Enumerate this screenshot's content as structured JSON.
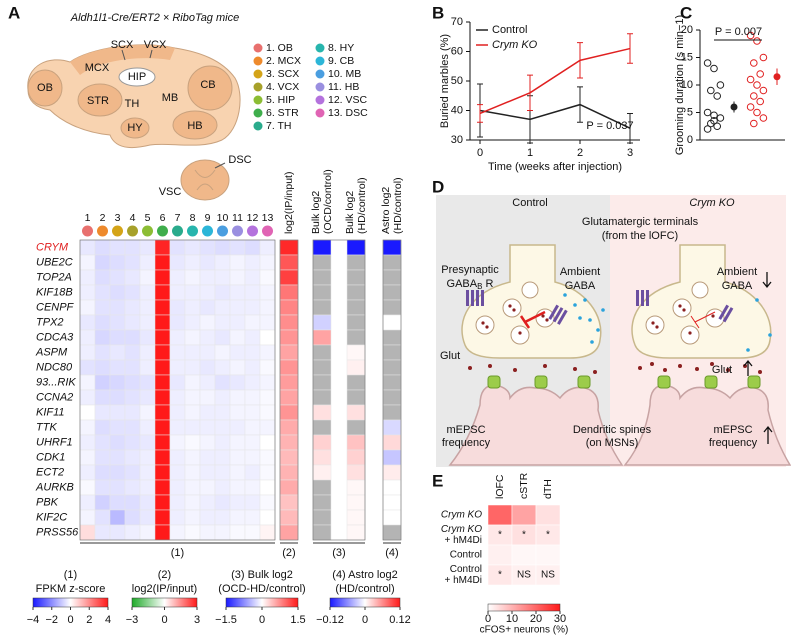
{
  "panels": [
    "A",
    "B",
    "C",
    "D",
    "E"
  ],
  "brain": {
    "title": "Aldh1l1-Cre/ERT2 × RiboTag mice",
    "regions": [
      "OB",
      "MCX",
      "SCX",
      "VCX",
      "HIP",
      "STR",
      "TH",
      "MB",
      "CB",
      "HY",
      "HB",
      "DSC",
      "VSC"
    ],
    "legend": [
      {
        "label": "1. OB",
        "color": "#e8706e"
      },
      {
        "label": "2. MCX",
        "color": "#ee8a2c"
      },
      {
        "label": "3. SCX",
        "color": "#d4a418"
      },
      {
        "label": "4. VCX",
        "color": "#a7a12a"
      },
      {
        "label": "5. HIP",
        "color": "#8cbd34"
      },
      {
        "label": "6. STR",
        "color": "#3fae4c"
      },
      {
        "label": "7. TH",
        "color": "#2aab8c"
      },
      {
        "label": "8. HY",
        "color": "#27b5ad"
      },
      {
        "label": "9. CB",
        "color": "#2cb6d8"
      },
      {
        "label": "10. MB",
        "color": "#4a9ee0"
      },
      {
        "label": "11. HB",
        "color": "#9a8fe0"
      },
      {
        "label": "12. VSC",
        "color": "#b472dd"
      },
      {
        "label": "13. DSC",
        "color": "#e064b4"
      }
    ]
  },
  "chart_data": [
    {
      "type": "heatmap",
      "label": "(1)",
      "colorbar_title": [
        "(1)",
        "FPKM z-score"
      ],
      "columns": [
        "1",
        "2",
        "3",
        "4",
        "5",
        "6",
        "7",
        "8",
        "9",
        "10",
        "11",
        "12",
        "13"
      ],
      "rows": [
        "CRYM",
        "UBE2C",
        "TOP2A",
        "KIF18B",
        "CENPF",
        "TPX2",
        "CDCA3",
        "ASPM",
        "NDC80",
        "93...RIK",
        "CCNA2",
        "KIF11",
        "TTK",
        "UHRF1",
        "CDK1",
        "ECT2",
        "AURKB",
        "PBK",
        "KIF2C",
        "PRSS56"
      ],
      "highlight_row": 0,
      "highlight_color": "#e02020",
      "values": [
        [
          -0.4,
          -0.6,
          -0.5,
          -0.5,
          -0.4,
          3.8,
          -0.5,
          -0.4,
          -0.5,
          -0.6,
          -0.5,
          -0.6,
          -0.3
        ],
        [
          -0.2,
          -0.7,
          -0.6,
          -0.5,
          -0.3,
          4,
          -0.4,
          -0.3,
          -0.4,
          -0.3,
          -0.2,
          -0.3,
          -0.2
        ],
        [
          -0.3,
          -0.6,
          -0.5,
          -0.4,
          -0.2,
          4,
          -0.3,
          -0.2,
          -0.3,
          -0.3,
          -0.2,
          -0.3,
          -0.1
        ],
        [
          -0.3,
          -0.5,
          -0.6,
          -0.5,
          -0.3,
          4,
          -0.3,
          -0.3,
          -0.3,
          -0.4,
          -0.3,
          -0.3,
          -0.2
        ],
        [
          -0.2,
          -0.5,
          -0.5,
          -0.4,
          -0.3,
          4,
          -0.4,
          -0.3,
          -0.4,
          -0.3,
          -0.3,
          -0.3,
          -0.2
        ],
        [
          -0.4,
          -0.6,
          -0.5,
          -0.4,
          -0.3,
          4,
          -0.4,
          -0.3,
          -0.2,
          -0.3,
          -0.3,
          -0.2,
          -0.2
        ],
        [
          -0.3,
          -0.7,
          -0.6,
          -0.6,
          -0.4,
          4,
          -0.3,
          -0.2,
          -0.3,
          -0.4,
          -0.2,
          -0.3,
          0
        ],
        [
          -0.3,
          -0.5,
          -0.4,
          -0.5,
          -0.3,
          4,
          -0.3,
          -0.3,
          -0.3,
          -0.2,
          -0.3,
          -0.3,
          -0.2
        ],
        [
          -0.5,
          -0.6,
          -0.5,
          -0.5,
          -0.3,
          4,
          -0.3,
          -0.3,
          -0.4,
          -0.3,
          -0.2,
          -0.3,
          -0.1
        ],
        [
          -0.2,
          -0.8,
          -0.7,
          -0.6,
          -0.5,
          4,
          -0.4,
          -0.2,
          -0.3,
          -0.5,
          -0.4,
          -0.3,
          -0.2
        ],
        [
          -0.3,
          -0.6,
          -0.6,
          -0.5,
          -0.4,
          4,
          -0.3,
          -0.2,
          -0.2,
          -0.3,
          -0.2,
          -0.2,
          -0.1
        ],
        [
          0,
          -0.4,
          -0.4,
          -0.4,
          -0.2,
          4,
          -0.3,
          -0.2,
          -0.3,
          -0.3,
          -0.2,
          -0.2,
          -0.1
        ],
        [
          -0.2,
          -0.6,
          -0.5,
          -0.5,
          -0.3,
          4,
          -0.3,
          -0.3,
          -0.3,
          -0.3,
          -0.3,
          -0.2,
          -0.2
        ],
        [
          -0.3,
          -0.5,
          -0.6,
          -0.5,
          -0.4,
          4,
          -0.2,
          -0.1,
          -0.2,
          -0.3,
          -0.2,
          -0.2,
          0
        ],
        [
          -0.2,
          -0.5,
          -0.5,
          -0.4,
          -0.3,
          4,
          -0.3,
          -0.2,
          -0.3,
          -0.3,
          -0.2,
          -0.2,
          -0.1
        ],
        [
          -0.3,
          -0.6,
          -0.6,
          -0.5,
          -0.3,
          4,
          -0.3,
          -0.2,
          -0.3,
          -0.3,
          -0.2,
          -0.3,
          -0.1
        ],
        [
          -0.1,
          -0.5,
          -0.5,
          -0.4,
          -0.3,
          4,
          -0.3,
          -0.2,
          -0.2,
          -0.3,
          -0.2,
          -0.2,
          0
        ],
        [
          -0.3,
          -0.8,
          -0.6,
          -0.6,
          -0.4,
          4,
          -0.3,
          -0.2,
          -0.3,
          -0.4,
          -0.3,
          -0.3,
          -0.1
        ],
        [
          -0.2,
          -0.5,
          -1.2,
          -0.6,
          -0.4,
          4,
          -0.3,
          -0.2,
          -0.3,
          -0.3,
          -0.2,
          -0.2,
          0
        ],
        [
          0.6,
          -0.4,
          -0.4,
          -0.3,
          -0.2,
          4,
          -0.2,
          -0.1,
          -0.2,
          -0.2,
          -0.1,
          -0.1,
          0.2
        ]
      ],
      "zlim": [
        -4,
        4
      ],
      "zticks": [
        {
          "value": -4,
          "label": "−4"
        },
        {
          "value": -2,
          "label": "−2"
        },
        0,
        2,
        4
      ],
      "colors": [
        "#1a1aff",
        "#ffffff",
        "#ff1a1a"
      ],
      "missing_color": "#b4b4b4"
    },
    {
      "type": "heatmap",
      "label": "(2)",
      "colorbar_title": [
        "(2)",
        "log2(IP/input)"
      ],
      "columns": [
        [
          "log2(IP/input)"
        ]
      ],
      "values": [
        [
          2.8
        ],
        [
          2.2
        ],
        [
          2.5
        ],
        [
          1.8
        ],
        [
          1.6
        ],
        [
          1.5
        ],
        [
          1.4
        ],
        [
          1.2
        ],
        [
          1.4
        ],
        [
          1.3
        ],
        [
          1.2
        ],
        [
          1.4
        ],
        [
          1.1
        ],
        [
          1.0
        ],
        [
          0.9
        ],
        [
          1.0
        ],
        [
          1.1
        ],
        [
          0.8
        ],
        [
          0.9
        ],
        [
          1.2
        ]
      ],
      "zlim": [
        -3,
        3
      ],
      "zticks": [
        {
          "value": -3,
          "label": "−3"
        },
        0,
        3
      ],
      "colors": [
        "#1faa2a",
        "#ffffff",
        "#ff1a1a"
      ],
      "missing_color": "#b4b4b4"
    },
    {
      "type": "heatmap",
      "label": "(3)",
      "colorbar_title": [
        "(3) Bulk log2",
        "(OCD-HD/control)"
      ],
      "columns": [
        [
          "Bulk log2",
          "(OCD/control)"
        ],
        [
          "Bulk log2",
          "(HD/control)"
        ]
      ],
      "values": [
        [
          -1.5,
          -1.5
        ],
        [
          null,
          null
        ],
        [
          null,
          null
        ],
        [
          null,
          null
        ],
        [
          null,
          null
        ],
        [
          -0.3,
          null
        ],
        [
          0.6,
          null
        ],
        [
          null,
          0.05
        ],
        [
          null,
          0.1
        ],
        [
          null,
          null
        ],
        [
          null,
          null
        ],
        [
          0.2,
          0.2
        ],
        [
          null,
          null
        ],
        [
          0.3,
          0.4
        ],
        [
          0.2,
          0.3
        ],
        [
          0.1,
          0.2
        ],
        [
          null,
          0.05
        ],
        [
          null,
          0.05
        ],
        [
          null,
          0.05
        ],
        [
          null,
          0.05
        ]
      ],
      "zlim": [
        -1.5,
        1.5
      ],
      "zticks": [
        {
          "value": -1.5,
          "label": "−1.5"
        },
        0,
        1.5
      ],
      "colors": [
        "#1a1aff",
        "#ffffff",
        "#ff1a1a"
      ],
      "missing_color": "#b4b4b4"
    },
    {
      "type": "heatmap",
      "label": "(4)",
      "colorbar_title": [
        "(4) Astro log2",
        "(HD/control)"
      ],
      "columns": [
        [
          "Astro log2",
          "(HD/control)"
        ]
      ],
      "values": [
        [
          -0.12
        ],
        [
          null
        ],
        [
          null
        ],
        [
          null
        ],
        [
          null
        ],
        [
          0
        ],
        [
          null
        ],
        [
          null
        ],
        [
          null
        ],
        [
          null
        ],
        [
          null
        ],
        [
          null
        ],
        [
          -0.02
        ],
        [
          0.02
        ],
        [
          -0.03
        ],
        [
          0.01
        ],
        [
          0
        ],
        [
          0
        ],
        [
          0
        ],
        [
          null
        ]
      ],
      "zlim": [
        -0.12,
        0.12
      ],
      "zticks": [
        {
          "value": -0.12,
          "label": "−0.12"
        },
        0,
        0.12
      ],
      "colors": [
        "#1a1aff",
        "#ffffff",
        "#ff1a1a"
      ],
      "missing_color": "#b4b4b4"
    },
    {
      "type": "line",
      "xlabel": "Time (weeks after injection)",
      "ylabel": "Buried marbles (%)",
      "annotation": "P = 0.037",
      "x": [
        0,
        1,
        2,
        3
      ],
      "xlim": [
        -0.2,
        3.2
      ],
      "xticks": [
        0,
        1,
        2,
        3
      ],
      "ylim": [
        30,
        70
      ],
      "yticks": [
        30,
        40,
        50,
        60,
        70
      ],
      "series": [
        {
          "name": "Control",
          "color": "#222222",
          "values": [
            40,
            37,
            42,
            34
          ],
          "errors": [
            9,
            8,
            6,
            5
          ]
        },
        {
          "name": "Crym KO",
          "color": "#e02020",
          "values": [
            39,
            46,
            57,
            61
          ],
          "errors": [
            3,
            6,
            6,
            5
          ]
        }
      ]
    },
    {
      "type": "scatter",
      "ylabel": "Grooming duration (s min−1)",
      "annotation": "P = 0.007",
      "ylim": [
        0,
        20
      ],
      "yticks": [
        0,
        5,
        10,
        15,
        20
      ],
      "series": [
        {
          "color": "#222222",
          "values": [
            14,
            13,
            10,
            9,
            8,
            5,
            4.5,
            4,
            3,
            2.5,
            2,
            3.5
          ],
          "mean": 6,
          "error": 1
        },
        {
          "color": "#e02020",
          "values": [
            19,
            18,
            15,
            14,
            12,
            11,
            10,
            9,
            8,
            7,
            6,
            5,
            4,
            3
          ],
          "mean": 11.5,
          "error": 1.5
        }
      ]
    },
    {
      "type": "heatmap",
      "xlabel": "cFOS+ neurons (%)",
      "columns": [
        [
          "lOFC"
        ],
        [
          "cSTR"
        ],
        [
          "dTH"
        ]
      ],
      "rows": [
        [
          "Crym KO"
        ],
        [
          "Crym KO",
          "+ hM4Di"
        ],
        [
          "Control"
        ],
        [
          "Control",
          "+ hM4Di"
        ]
      ],
      "values": [
        [
          20,
          12,
          4
        ],
        [
          3,
          4,
          3
        ],
        [
          2,
          1,
          1
        ],
        [
          3,
          2,
          2
        ]
      ],
      "cell_labels": [
        [
          null,
          null,
          null
        ],
        [
          "*",
          "*",
          "*"
        ],
        [
          null,
          null,
          null
        ],
        [
          "*",
          "NS",
          "NS"
        ]
      ],
      "zlim": [
        0,
        30
      ],
      "zticks": [
        0,
        10,
        20,
        30
      ],
      "colors": [
        "#ffffff",
        "#ff1a1a"
      ],
      "missing_color": "#b4b4b4"
    }
  ],
  "diagram": {
    "control": "Control",
    "crym_ko": "Crym KO",
    "terminals": [
      "Glutamatergic terminals",
      "(from the lOFC)"
    ],
    "presynaptic": "Presynaptic",
    "gabab": {
      "main": "GABA",
      "sub": "B",
      "rest": " R"
    },
    "ambient_left": [
      "Ambient",
      "GABA"
    ],
    "ambient_right": [
      "Ambient",
      "GABA"
    ],
    "glut_left": "Glut",
    "glut_right": "Glut",
    "mepsc_left": [
      "mEPSC",
      "frequency"
    ],
    "spines": [
      "Dendritic spines",
      "(on MSNs)"
    ],
    "mepsc_right": [
      "mEPSC",
      "frequency"
    ]
  }
}
